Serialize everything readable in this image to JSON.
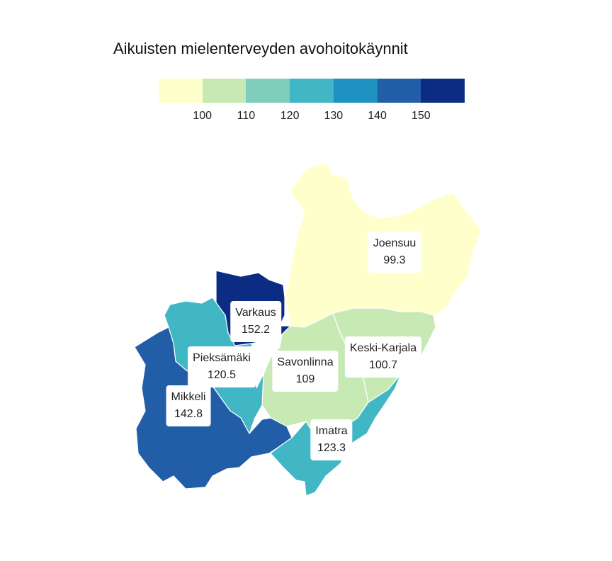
{
  "title": "Aikuisten mielenterveyden avohoitokäynnit",
  "legend": {
    "colors": [
      "#ffffcc",
      "#c7e9b4",
      "#7fcdbb",
      "#41b6c4",
      "#1d91c0",
      "#225ea8",
      "#0c2c84"
    ],
    "ticks": [
      "100",
      "110",
      "120",
      "130",
      "140",
      "150"
    ]
  },
  "regions": [
    {
      "name": "Joensuu",
      "value": "99.3",
      "color": "#ffffcc"
    },
    {
      "name": "Keski-Karjala",
      "value": "100.7",
      "color": "#c7e9b4"
    },
    {
      "name": "Savonlinna",
      "value": "109",
      "color": "#c7e9b4"
    },
    {
      "name": "Varkaus",
      "value": "152.2",
      "color": "#0c2c84"
    },
    {
      "name": "Pieksämäki",
      "value": "120.5",
      "color": "#41b6c4"
    },
    {
      "name": "Mikkeli",
      "value": "142.8",
      "color": "#225ea8"
    },
    {
      "name": "Imatra",
      "value": "123.3",
      "color": "#41b6c4"
    }
  ]
}
